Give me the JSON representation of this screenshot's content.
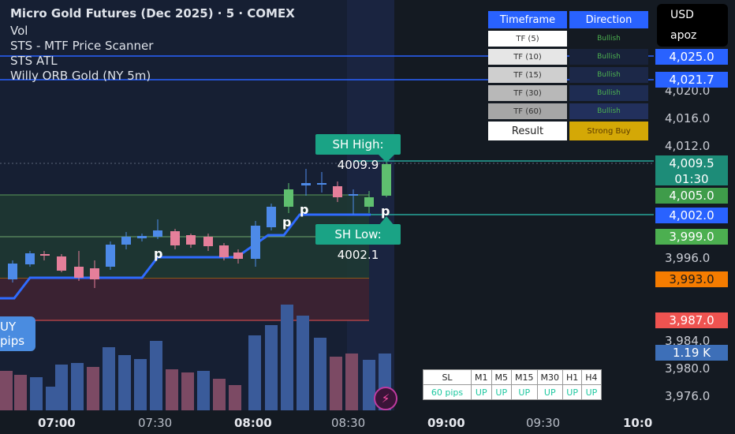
{
  "header": {
    "symbol": "Micro Gold Futures (Dec 2025) · 5 · COMEX",
    "indicators": [
      "Vol",
      "STS - MTF Price Scanner",
      "STS ATL",
      "Willy ORB Gold (NY 5m)"
    ]
  },
  "account": {
    "currency": "USD",
    "user": "apoz"
  },
  "tf_table": {
    "headers": [
      "Timeframe",
      "Direction"
    ],
    "rows": [
      {
        "tf": "TF (5)",
        "direction": "Bullish"
      },
      {
        "tf": "TF (10)",
        "direction": "Bullish"
      },
      {
        "tf": "TF (15)",
        "direction": "Bullish"
      },
      {
        "tf": "TF (30)",
        "direction": "Bullish"
      },
      {
        "tf": "TF (60)",
        "direction": "Bullish"
      }
    ],
    "result_label": "Result",
    "result_value": "Strong Buy"
  },
  "sh_high": "SH High: 4009.9",
  "sh_low": "SH Low:  4002.1",
  "p_mark": "p",
  "buy_box_line1": "UY",
  "buy_box_line2": "pips",
  "sl_table": {
    "headers": [
      "SL",
      "M1",
      "M5",
      "M15",
      "M30",
      "H1",
      "H4"
    ],
    "values": [
      "60 pips",
      "UP",
      "UP",
      "UP",
      "UP",
      "UP",
      "UP"
    ]
  },
  "price_axis": {
    "ticks": [
      "4,020.0",
      "4,016.0",
      "4,012.0",
      "3,996.0",
      "3,984.0",
      "3,980.0",
      "3,976.0"
    ],
    "tags": [
      {
        "value": "4,025.0",
        "color": "#2962ff"
      },
      {
        "value": "4,021.7",
        "color": "#2962ff"
      },
      {
        "value": "4,009.5",
        "value2": "01:30",
        "color": "#26a69a"
      },
      {
        "value": "4,005.0",
        "color": "#3f9c4a"
      },
      {
        "value": "4,002.0",
        "color": "#2962ff"
      },
      {
        "value": "3,999.0",
        "color": "#4caf50"
      },
      {
        "value": "3,993.0",
        "color": "#f57c00"
      },
      {
        "value": "3,987.0",
        "color": "#ef5350"
      },
      {
        "value": "1.19 K",
        "color": "#3d6fb8"
      }
    ]
  },
  "time_axis": {
    "labels": [
      "07:00",
      "07:30",
      "08:00",
      "08:30",
      "09:00",
      "09:30",
      "10:0"
    ]
  }
}
